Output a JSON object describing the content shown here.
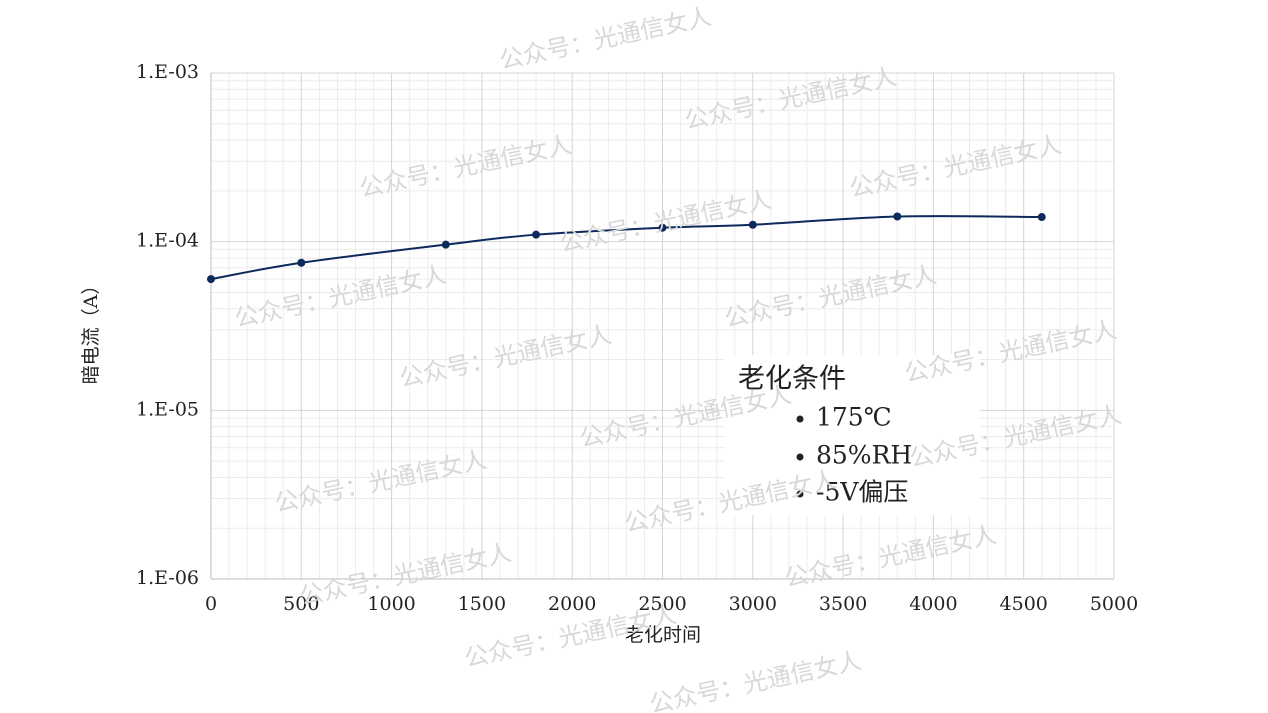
{
  "chart_data": {
    "type": "line",
    "x_label": "老化时间",
    "y_label": "暗电流（A）",
    "x": [
      0,
      500,
      1300,
      1800,
      2500,
      3000,
      3800,
      4600
    ],
    "series": [
      {
        "name": "暗电流",
        "color": "#0d2a5c",
        "values": [
          6e-05,
          7.5e-05,
          9.6e-05,
          0.00011,
          0.000121,
          0.000126,
          0.000141,
          0.00014
        ]
      }
    ],
    "xlim": [
      0,
      5000
    ],
    "xticks": [
      0,
      500,
      1000,
      1500,
      2000,
      2500,
      3000,
      3500,
      4000,
      4500,
      5000
    ],
    "ylim": [
      1e-06,
      0.001
    ],
    "log_y": true,
    "yticks": [
      {
        "value": 1e-06,
        "label": "1.E-06"
      },
      {
        "value": 1e-05,
        "label": "1.E-05"
      },
      {
        "value": 0.0001,
        "label": "1.E-04"
      },
      {
        "value": 0.001,
        "label": "1.E-03"
      }
    ],
    "grid": true,
    "minor_grid": true,
    "annotation": {
      "title": "老化条件",
      "items": [
        "175℃",
        "85%RH",
        "-5V偏压"
      ]
    },
    "watermark": "公众号：光通信女人"
  }
}
